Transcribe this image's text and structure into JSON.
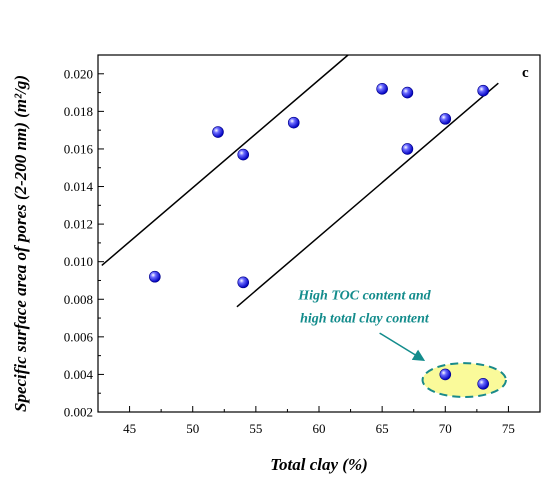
{
  "chart_data": {
    "type": "scatter",
    "panel_label": "c",
    "xlabel": "Total clay (%)",
    "ylabel": "Specific surface area of pores (2-200 nm) (m²/g)",
    "xlim": [
      42.5,
      77.5
    ],
    "ylim": [
      0.002,
      0.021
    ],
    "x_ticks": [
      "45",
      "50",
      "55",
      "60",
      "65",
      "70",
      "75"
    ],
    "y_ticks": [
      "0.002",
      "0.004",
      "0.006",
      "0.008",
      "0.010",
      "0.012",
      "0.014",
      "0.016",
      "0.018",
      "0.020"
    ],
    "x_tick_values": [
      45,
      50,
      55,
      60,
      65,
      70,
      75
    ],
    "y_tick_values": [
      0.002,
      0.004,
      0.006,
      0.008,
      0.01,
      0.012,
      0.014,
      0.016,
      0.018,
      0.02
    ],
    "grid": false,
    "points": [
      {
        "x": 47,
        "y": 0.0092
      },
      {
        "x": 52,
        "y": 0.0169
      },
      {
        "x": 54,
        "y": 0.0157
      },
      {
        "x": 54,
        "y": 0.0089
      },
      {
        "x": 58,
        "y": 0.0174
      },
      {
        "x": 65,
        "y": 0.0192
      },
      {
        "x": 67,
        "y": 0.019
      },
      {
        "x": 67,
        "y": 0.016
      },
      {
        "x": 70,
        "y": 0.0176
      },
      {
        "x": 73,
        "y": 0.0191
      },
      {
        "x": 70,
        "y": 0.004
      },
      {
        "x": 73,
        "y": 0.0035
      }
    ],
    "point_color": "#1a1aff",
    "trend_lines": [
      {
        "x": [
          42.8,
          62.3
        ],
        "y": [
          0.0098,
          0.021
        ]
      },
      {
        "x": [
          53.5,
          74.2
        ],
        "y": [
          0.0076,
          0.0195
        ]
      }
    ],
    "highlight_ellipse": {
      "cx": 71.5,
      "cy": 0.0037,
      "rx": 3.3,
      "ry": 0.0009,
      "fill": "#fafa9a",
      "stroke": "#1a8a8a"
    },
    "annotation": {
      "lines": [
        "High TOC content and",
        "high total clay content"
      ],
      "color": "#138c8c",
      "arrow_from": {
        "x": 64.8,
        "y": 0.0062
      },
      "arrow_to": {
        "x": 68.2,
        "y": 0.0048
      }
    }
  }
}
